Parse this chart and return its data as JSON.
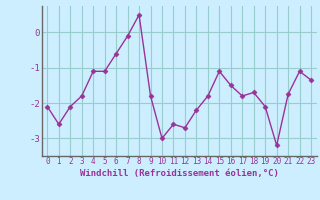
{
  "x": [
    0,
    1,
    2,
    3,
    4,
    5,
    6,
    7,
    8,
    9,
    10,
    11,
    12,
    13,
    14,
    15,
    16,
    17,
    18,
    19,
    20,
    21,
    22,
    23
  ],
  "y": [
    -2.1,
    -2.6,
    -2.1,
    -1.8,
    -1.1,
    -1.1,
    -0.6,
    -0.1,
    0.5,
    -1.8,
    -3.0,
    -2.6,
    -2.7,
    -2.2,
    -1.8,
    -1.1,
    -1.5,
    -1.8,
    -1.7,
    -2.1,
    -3.2,
    -1.75,
    -1.1,
    -1.35
  ],
  "line_color": "#993399",
  "marker": "D",
  "marker_size": 2.5,
  "background_color": "#cceeff",
  "grid_color": "#99cccc",
  "xlabel": "Windchill (Refroidissement éolien,°C)",
  "xlabel_color": "#993399",
  "tick_color": "#993399",
  "ylim": [
    -3.5,
    0.75
  ],
  "yticks": [
    -3,
    -2,
    -1,
    0
  ],
  "xlim": [
    -0.5,
    23.5
  ],
  "xticks": [
    0,
    1,
    2,
    3,
    4,
    5,
    6,
    7,
    8,
    9,
    10,
    11,
    12,
    13,
    14,
    15,
    16,
    17,
    18,
    19,
    20,
    21,
    22,
    23
  ],
  "spine_color": "#666666",
  "line_width": 1.0,
  "xtick_fontsize": 5.5,
  "ytick_fontsize": 6.5,
  "xlabel_fontsize": 6.5
}
